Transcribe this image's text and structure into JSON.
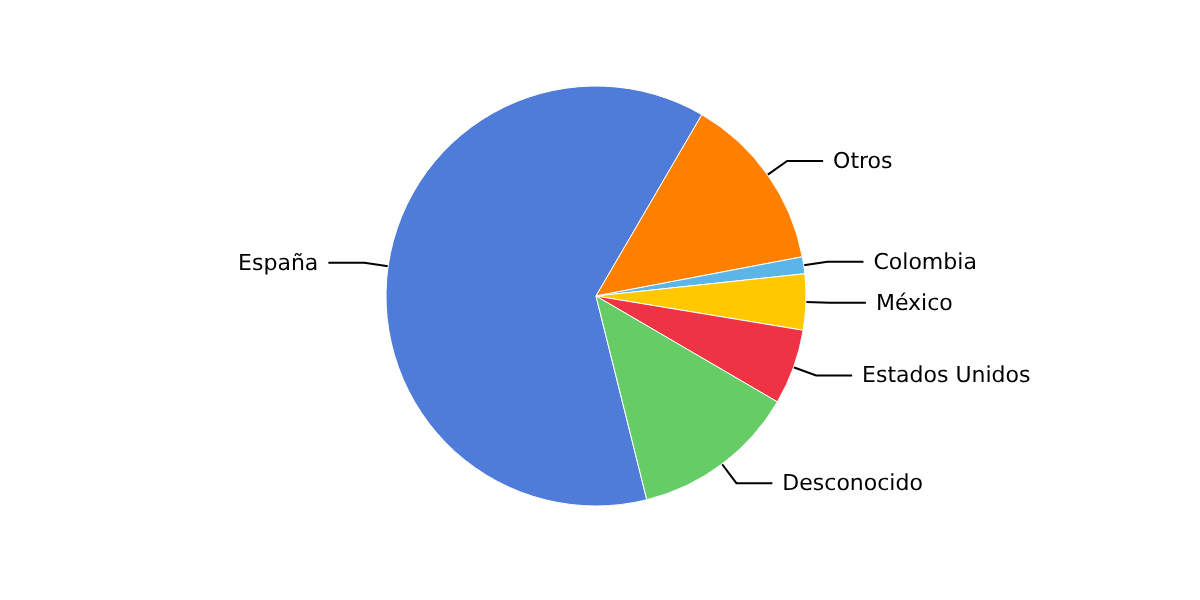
{
  "chart_data": {
    "type": "pie",
    "categories": [
      "España",
      "Otros",
      "Colombia",
      "México",
      "Estados Unidos",
      "Desconocido"
    ],
    "values": [
      62.3,
      13.6,
      1.3,
      4.3,
      5.8,
      12.7
    ],
    "colors": [
      "#4f7bd9",
      "#ff7f00",
      "#5bb5e8",
      "#ffc800",
      "#ee3344",
      "#66cc66"
    ],
    "legend": false
  }
}
